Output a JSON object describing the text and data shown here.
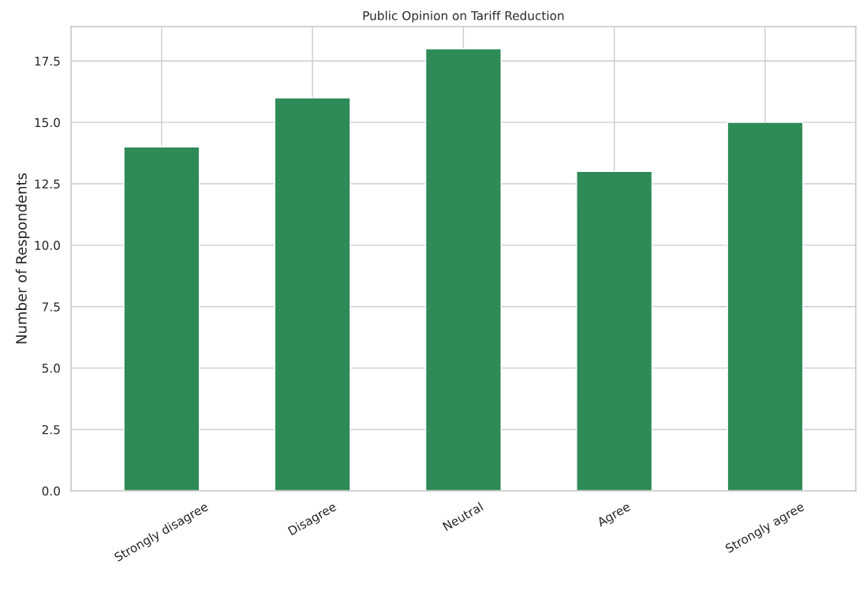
{
  "chart_data": {
    "type": "bar",
    "title": "Public Opinion on Tariff Reduction",
    "ylabel": "Number of Respondents",
    "categories": [
      "Strongly disagree",
      "Disagree",
      "Neutral",
      "Agree",
      "Strongly agree"
    ],
    "values": [
      14,
      16,
      18,
      13,
      15
    ],
    "color": "#2e8b57",
    "ylim": [
      0,
      18.9
    ],
    "yticks": [
      {
        "value": 0,
        "label": "0.0"
      },
      {
        "value": 2.5,
        "label": "2.5"
      },
      {
        "value": 5,
        "label": "5.0"
      },
      {
        "value": 7.5,
        "label": "7.5"
      },
      {
        "value": 10,
        "label": "10.0"
      },
      {
        "value": 12.5,
        "label": "12.5"
      },
      {
        "value": 15,
        "label": "15.0"
      },
      {
        "value": 17.5,
        "label": "17.5"
      }
    ],
    "grid": true
  }
}
